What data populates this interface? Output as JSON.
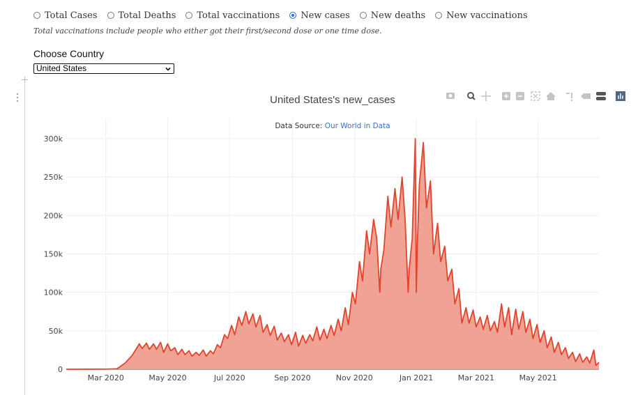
{
  "radio_options": [
    {
      "label": "Total Cases",
      "checked": false
    },
    {
      "label": "Total Deaths",
      "checked": false
    },
    {
      "label": "Total vaccinations",
      "checked": false
    },
    {
      "label": "New cases",
      "checked": true
    },
    {
      "label": "New deaths",
      "checked": false
    },
    {
      "label": "New vaccinations",
      "checked": false
    }
  ],
  "note": "Total vaccinations include people who either got their first/second dose or one time dose.",
  "country_label": "Choose Country",
  "country_selected": "United States",
  "toolbar_icons": [
    "camera-icon",
    "zoom-icon",
    "pan-icon",
    "zoom-in-icon",
    "zoom-out-icon",
    "autoscale-icon",
    "reset-axes-icon",
    "spike-lines-icon",
    "hover-closest-icon",
    "hover-compare-icon",
    "plotly-logo-icon"
  ],
  "chart_data": {
    "type": "area",
    "title": "United States's new_cases",
    "source_prefix": "Data Source: ",
    "source_link": "Our World in Data",
    "x_range": [
      "2020-01-22",
      "2021-06-30"
    ],
    "y_range": [
      0,
      310000
    ],
    "y_ticks": [
      0,
      50000,
      100000,
      150000,
      200000,
      250000,
      300000
    ],
    "y_tick_labels": [
      "0",
      "50k",
      "100k",
      "150k",
      "200k",
      "250k",
      "300k"
    ],
    "x_ticks": [
      "2020-03-01",
      "2020-05-01",
      "2020-07-01",
      "2020-09-01",
      "2020-11-01",
      "2021-01-01",
      "2021-03-01",
      "2021-05-01"
    ],
    "x_tick_labels": [
      "Mar 2020",
      "May 2020",
      "Jul 2020",
      "Sep 2020",
      "Nov 2020",
      "Jan 2021",
      "Mar 2021",
      "May 2021"
    ],
    "grid": true,
    "line_color": "#e0442d",
    "fill_color": "#f0a394",
    "series": {
      "x": [
        "2020-01-22",
        "2020-03-01",
        "2020-03-12",
        "2020-03-20",
        "2020-03-27",
        "2020-04-03",
        "2020-04-06",
        "2020-04-10",
        "2020-04-13",
        "2020-04-17",
        "2020-04-20",
        "2020-04-24",
        "2020-04-27",
        "2020-05-01",
        "2020-05-04",
        "2020-05-08",
        "2020-05-11",
        "2020-05-15",
        "2020-05-18",
        "2020-05-22",
        "2020-05-25",
        "2020-05-29",
        "2020-06-01",
        "2020-06-05",
        "2020-06-08",
        "2020-06-12",
        "2020-06-15",
        "2020-06-19",
        "2020-06-22",
        "2020-06-26",
        "2020-06-29",
        "2020-07-03",
        "2020-07-06",
        "2020-07-10",
        "2020-07-13",
        "2020-07-17",
        "2020-07-20",
        "2020-07-24",
        "2020-07-27",
        "2020-07-31",
        "2020-08-03",
        "2020-08-07",
        "2020-08-10",
        "2020-08-14",
        "2020-08-17",
        "2020-08-21",
        "2020-08-24",
        "2020-08-28",
        "2020-08-31",
        "2020-09-04",
        "2020-09-07",
        "2020-09-11",
        "2020-09-14",
        "2020-09-18",
        "2020-09-21",
        "2020-09-25",
        "2020-09-28",
        "2020-10-02",
        "2020-10-05",
        "2020-10-09",
        "2020-10-12",
        "2020-10-16",
        "2020-10-19",
        "2020-10-23",
        "2020-10-26",
        "2020-10-30",
        "2020-11-02",
        "2020-11-06",
        "2020-11-09",
        "2020-11-13",
        "2020-11-16",
        "2020-11-20",
        "2020-11-23",
        "2020-11-26",
        "2020-11-27",
        "2020-11-30",
        "2020-12-04",
        "2020-12-07",
        "2020-12-11",
        "2020-12-14",
        "2020-12-18",
        "2020-12-21",
        "2020-12-24",
        "2020-12-25",
        "2020-12-28",
        "2020-12-31",
        "2021-01-01",
        "2021-01-02",
        "2021-01-04",
        "2021-01-08",
        "2021-01-11",
        "2021-01-15",
        "2021-01-18",
        "2021-01-22",
        "2021-01-25",
        "2021-01-29",
        "2021-02-01",
        "2021-02-05",
        "2021-02-08",
        "2021-02-12",
        "2021-02-15",
        "2021-02-19",
        "2021-02-22",
        "2021-02-26",
        "2021-03-01",
        "2021-03-05",
        "2021-03-08",
        "2021-03-12",
        "2021-03-15",
        "2021-03-19",
        "2021-03-22",
        "2021-03-26",
        "2021-03-29",
        "2021-04-02",
        "2021-04-05",
        "2021-04-09",
        "2021-04-12",
        "2021-04-16",
        "2021-04-19",
        "2021-04-23",
        "2021-04-26",
        "2021-04-30",
        "2021-05-03",
        "2021-05-07",
        "2021-05-10",
        "2021-05-14",
        "2021-05-17",
        "2021-05-21",
        "2021-05-24",
        "2021-05-28",
        "2021-05-31",
        "2021-06-04",
        "2021-06-07",
        "2021-06-11",
        "2021-06-14",
        "2021-06-18",
        "2021-06-21",
        "2021-06-25",
        "2021-06-27",
        "2021-06-30"
      ],
      "y": [
        0,
        100,
        500,
        8000,
        18000,
        33000,
        27000,
        34000,
        26000,
        33000,
        26000,
        35000,
        22000,
        33000,
        24000,
        28000,
        19000,
        26000,
        19000,
        24000,
        17000,
        22000,
        18000,
        25000,
        17000,
        24000,
        20000,
        32000,
        28000,
        45000,
        40000,
        57000,
        45000,
        68000,
        57000,
        75000,
        59000,
        72000,
        55000,
        70000,
        48000,
        58000,
        44000,
        56000,
        38000,
        47000,
        36000,
        45000,
        32000,
        48000,
        30000,
        44000,
        34000,
        45000,
        37000,
        55000,
        38000,
        52000,
        40000,
        57000,
        44000,
        65000,
        50000,
        80000,
        58000,
        100000,
        85000,
        140000,
        115000,
        180000,
        150000,
        195000,
        170000,
        100000,
        130000,
        155000,
        225000,
        185000,
        235000,
        195000,
        250000,
        195000,
        100000,
        130000,
        170000,
        300000,
        100000,
        160000,
        240000,
        295000,
        210000,
        245000,
        150000,
        190000,
        140000,
        160000,
        115000,
        130000,
        85000,
        105000,
        60000,
        80000,
        60000,
        77000,
        55000,
        68000,
        52000,
        70000,
        50000,
        62000,
        48000,
        85000,
        55000,
        80000,
        45000,
        78000,
        52000,
        75000,
        48000,
        65000,
        40000,
        58000,
        35000,
        50000,
        28000,
        42000,
        22000,
        35000,
        19000,
        28000,
        14000,
        22000,
        10000,
        20000,
        9000,
        16000,
        8000,
        25000,
        5000,
        9000
      ]
    }
  }
}
